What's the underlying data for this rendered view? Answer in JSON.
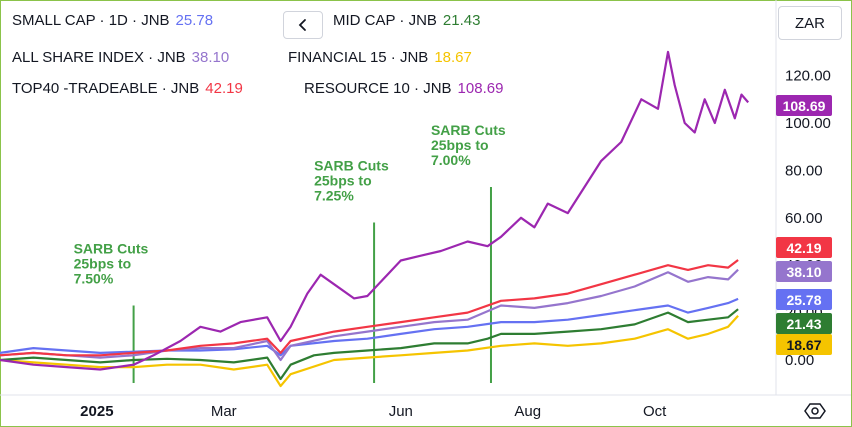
{
  "legend": [
    {
      "name": "SMALL CAP · 1D · JNB",
      "value": "25.78",
      "color": "#6571f2"
    },
    {
      "name": "MID CAP · JNB",
      "value": "21.43",
      "color": "#2e7d32"
    },
    {
      "name": "ALL SHARE INDEX · JNB",
      "value": "38.10",
      "color": "#9575cd"
    },
    {
      "name": "FINANCIAL 15 · JNB",
      "value": "18.67",
      "color": "#f5c400"
    },
    {
      "name": "TOP40 -TRADEABLE · JNB",
      "value": "42.19",
      "color": "#f23645"
    },
    {
      "name": "RESOURCE 10 · JNB",
      "value": "108.69",
      "color": "#9c27b0"
    }
  ],
  "toolbar": {
    "currency": "ZAR",
    "nav_icon": "chevron-left-icon",
    "settings_icon": "settings-icon"
  },
  "chart_data": {
    "type": "line",
    "title": "",
    "xlabel": "",
    "ylabel": "",
    "x_ticks": [
      "2025",
      "Mar",
      "Jun",
      "Aug",
      "Oct"
    ],
    "y_ticks": [
      "0.00",
      "20.00",
      "40.00",
      "60.00",
      "80.00",
      "100.00",
      "120.00"
    ],
    "ylim": [
      -8,
      135
    ],
    "xlim": [
      0,
      11.3
    ],
    "grid": false,
    "legend_position": "top-left",
    "annotations": [
      {
        "x": 2.0,
        "y_top": 23,
        "lines": [
          "SARB Cuts",
          "25bps to",
          "7.50%"
        ]
      },
      {
        "x": 5.6,
        "y_top": 58,
        "lines": [
          "SARB Cuts",
          "25bps to",
          "7.25%"
        ]
      },
      {
        "x": 7.35,
        "y_top": 73,
        "lines": [
          "SARB Cuts",
          "25bps to",
          "7.00%"
        ]
      }
    ],
    "series": [
      {
        "name": "SMALL CAP · 1D · JNB",
        "color": "#6571f2",
        "last_value": 25.78,
        "points": [
          [
            0,
            3
          ],
          [
            0.5,
            5
          ],
          [
            1,
            4
          ],
          [
            1.5,
            3
          ],
          [
            2,
            3.5
          ],
          [
            2.5,
            4
          ],
          [
            3,
            4
          ],
          [
            3.5,
            4.5
          ],
          [
            4,
            6
          ],
          [
            4.2,
            2
          ],
          [
            4.35,
            6
          ],
          [
            5,
            8
          ],
          [
            5.5,
            9
          ],
          [
            6,
            11
          ],
          [
            6.5,
            13
          ],
          [
            7,
            14
          ],
          [
            7.5,
            16
          ],
          [
            8,
            16
          ],
          [
            8.5,
            17
          ],
          [
            9,
            19
          ],
          [
            9.5,
            21
          ],
          [
            10,
            23
          ],
          [
            10.3,
            20
          ],
          [
            10.6,
            22
          ],
          [
            10.9,
            24
          ],
          [
            11.05,
            25.78
          ]
        ]
      },
      {
        "name": "MID CAP · JNB",
        "color": "#2e7d32",
        "last_value": 21.43,
        "points": [
          [
            0,
            0
          ],
          [
            0.5,
            1
          ],
          [
            1,
            0
          ],
          [
            1.5,
            -1
          ],
          [
            2,
            0
          ],
          [
            2.5,
            0.5
          ],
          [
            3,
            0
          ],
          [
            3.5,
            -1
          ],
          [
            4,
            1
          ],
          [
            4.2,
            -8
          ],
          [
            4.35,
            -2
          ],
          [
            4.7,
            2
          ],
          [
            5,
            3
          ],
          [
            5.5,
            4
          ],
          [
            6,
            5
          ],
          [
            6.5,
            7
          ],
          [
            7,
            7
          ],
          [
            7.3,
            9
          ],
          [
            7.5,
            11
          ],
          [
            8,
            11
          ],
          [
            8.5,
            12
          ],
          [
            9,
            13
          ],
          [
            9.5,
            15
          ],
          [
            10,
            20
          ],
          [
            10.3,
            16
          ],
          [
            10.6,
            17
          ],
          [
            10.9,
            18
          ],
          [
            11.05,
            21.43
          ]
        ]
      },
      {
        "name": "ALL SHARE INDEX · JNB",
        "color": "#9575cd",
        "last_value": 38.1,
        "points": [
          [
            0,
            2
          ],
          [
            0.5,
            3
          ],
          [
            1,
            2
          ],
          [
            1.5,
            1
          ],
          [
            2,
            2
          ],
          [
            2.5,
            4
          ],
          [
            3,
            5
          ],
          [
            3.5,
            5
          ],
          [
            4,
            8
          ],
          [
            4.2,
            0
          ],
          [
            4.35,
            6
          ],
          [
            5,
            10
          ],
          [
            5.5,
            12
          ],
          [
            6,
            14
          ],
          [
            6.5,
            16
          ],
          [
            7,
            17
          ],
          [
            7.5,
            23
          ],
          [
            8,
            22
          ],
          [
            8.5,
            24
          ],
          [
            9,
            27
          ],
          [
            9.5,
            31
          ],
          [
            10,
            37
          ],
          [
            10.3,
            33
          ],
          [
            10.6,
            35
          ],
          [
            10.9,
            34
          ],
          [
            11.05,
            38.1
          ]
        ]
      },
      {
        "name": "FINANCIAL 15 · JNB",
        "color": "#f5c400",
        "last_value": 18.67,
        "points": [
          [
            0,
            0
          ],
          [
            0.5,
            -1
          ],
          [
            1,
            -2
          ],
          [
            1.5,
            -3
          ],
          [
            2,
            -3
          ],
          [
            2.5,
            -2
          ],
          [
            3,
            -2
          ],
          [
            3.5,
            -4
          ],
          [
            4,
            -2
          ],
          [
            4.2,
            -11
          ],
          [
            4.35,
            -6
          ],
          [
            5,
            0
          ],
          [
            5.5,
            1
          ],
          [
            6,
            2
          ],
          [
            6.5,
            3
          ],
          [
            7,
            4
          ],
          [
            7.5,
            6
          ],
          [
            8,
            7
          ],
          [
            8.5,
            6
          ],
          [
            9,
            7
          ],
          [
            9.5,
            9
          ],
          [
            10,
            13
          ],
          [
            10.3,
            9
          ],
          [
            10.6,
            11
          ],
          [
            10.9,
            14
          ],
          [
            11.05,
            18.67
          ]
        ]
      },
      {
        "name": "TOP40 -TRADEABLE · JNB",
        "color": "#f23645",
        "last_value": 42.19,
        "points": [
          [
            0,
            2
          ],
          [
            0.5,
            3
          ],
          [
            1,
            2
          ],
          [
            1.5,
            2
          ],
          [
            2,
            3
          ],
          [
            2.5,
            4
          ],
          [
            3,
            6
          ],
          [
            3.5,
            7
          ],
          [
            4,
            9
          ],
          [
            4.2,
            3
          ],
          [
            4.35,
            8
          ],
          [
            5,
            12
          ],
          [
            5.5,
            14
          ],
          [
            6,
            16
          ],
          [
            6.5,
            18
          ],
          [
            7,
            20
          ],
          [
            7.5,
            25
          ],
          [
            8,
            26
          ],
          [
            8.5,
            28
          ],
          [
            9,
            32
          ],
          [
            9.5,
            36
          ],
          [
            10,
            40
          ],
          [
            10.3,
            38
          ],
          [
            10.6,
            40
          ],
          [
            10.9,
            39
          ],
          [
            11.05,
            42.19
          ]
        ]
      },
      {
        "name": "RESOURCE 10 · JNB",
        "color": "#9c27b0",
        "last_value": 108.69,
        "points": [
          [
            0,
            0
          ],
          [
            0.5,
            -2
          ],
          [
            1,
            -3
          ],
          [
            1.5,
            -4
          ],
          [
            2,
            -2
          ],
          [
            2.3,
            2
          ],
          [
            2.7,
            8
          ],
          [
            3,
            14
          ],
          [
            3.3,
            12
          ],
          [
            3.6,
            16
          ],
          [
            4,
            18
          ],
          [
            4.2,
            8
          ],
          [
            4.35,
            14
          ],
          [
            4.6,
            28
          ],
          [
            4.8,
            36
          ],
          [
            5,
            32
          ],
          [
            5.3,
            26
          ],
          [
            5.5,
            27
          ],
          [
            5.8,
            36
          ],
          [
            6,
            42
          ],
          [
            6.3,
            44
          ],
          [
            6.6,
            46
          ],
          [
            7,
            50
          ],
          [
            7.3,
            48
          ],
          [
            7.5,
            52
          ],
          [
            7.8,
            60
          ],
          [
            8,
            56
          ],
          [
            8.2,
            66
          ],
          [
            8.5,
            62
          ],
          [
            9,
            84
          ],
          [
            9.3,
            92
          ],
          [
            9.6,
            110
          ],
          [
            9.85,
            106
          ],
          [
            10,
            130
          ],
          [
            10.1,
            116
          ],
          [
            10.25,
            100
          ],
          [
            10.4,
            96
          ],
          [
            10.55,
            110
          ],
          [
            10.7,
            100
          ],
          [
            10.85,
            114
          ],
          [
            11.0,
            102
          ],
          [
            11.1,
            112
          ],
          [
            11.2,
            108.69
          ]
        ]
      }
    ]
  }
}
